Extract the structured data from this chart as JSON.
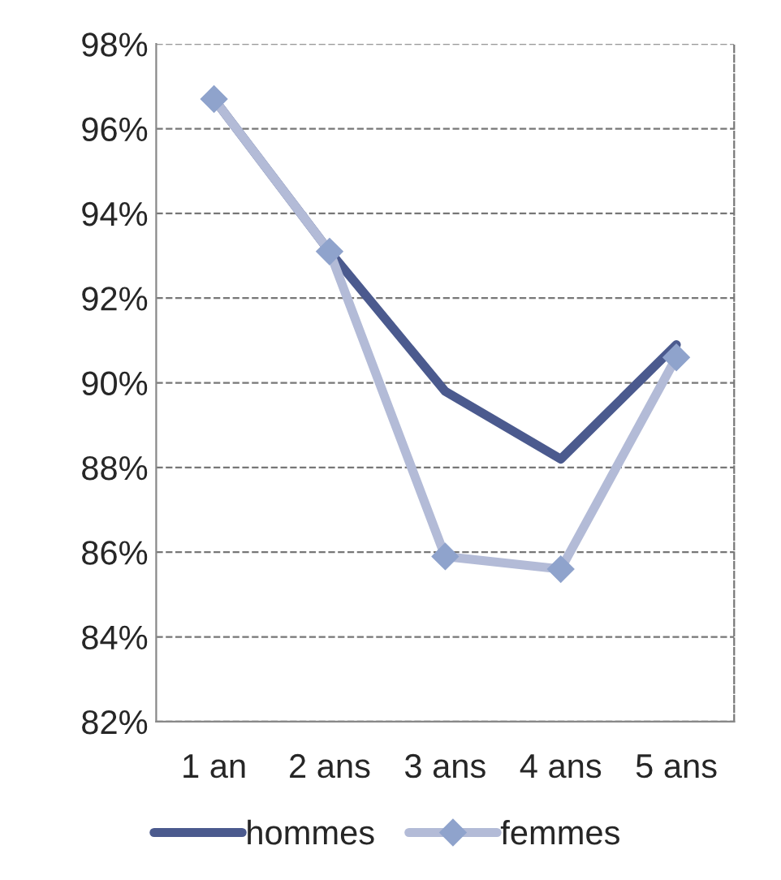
{
  "chart_data": {
    "type": "line",
    "categories": [
      "1 an",
      "2 ans",
      "3 ans",
      "4 ans",
      "5 ans"
    ],
    "series": [
      {
        "name": "hommes",
        "color": "#4b5a8e",
        "values": [
          96.7,
          93.1,
          89.8,
          88.2,
          90.9
        ],
        "marker": "none"
      },
      {
        "name": "femmes",
        "color": "#b3bbd7",
        "values": [
          96.7,
          93.1,
          85.9,
          85.6,
          90.6
        ],
        "marker": "diamond"
      }
    ],
    "ylim": [
      82,
      98
    ],
    "yticks": [
      {
        "value": 82,
        "label": "82%"
      },
      {
        "value": 84,
        "label": "84%"
      },
      {
        "value": 86,
        "label": "86%"
      },
      {
        "value": 88,
        "label": "88%"
      },
      {
        "value": 90,
        "label": "90%"
      },
      {
        "value": 92,
        "label": "92%"
      },
      {
        "value": 94,
        "label": "94%"
      },
      {
        "value": 96,
        "label": "96%"
      },
      {
        "value": 98,
        "label": "98%"
      }
    ],
    "grid": "y",
    "legend": "bottom",
    "line_style": "solid"
  }
}
